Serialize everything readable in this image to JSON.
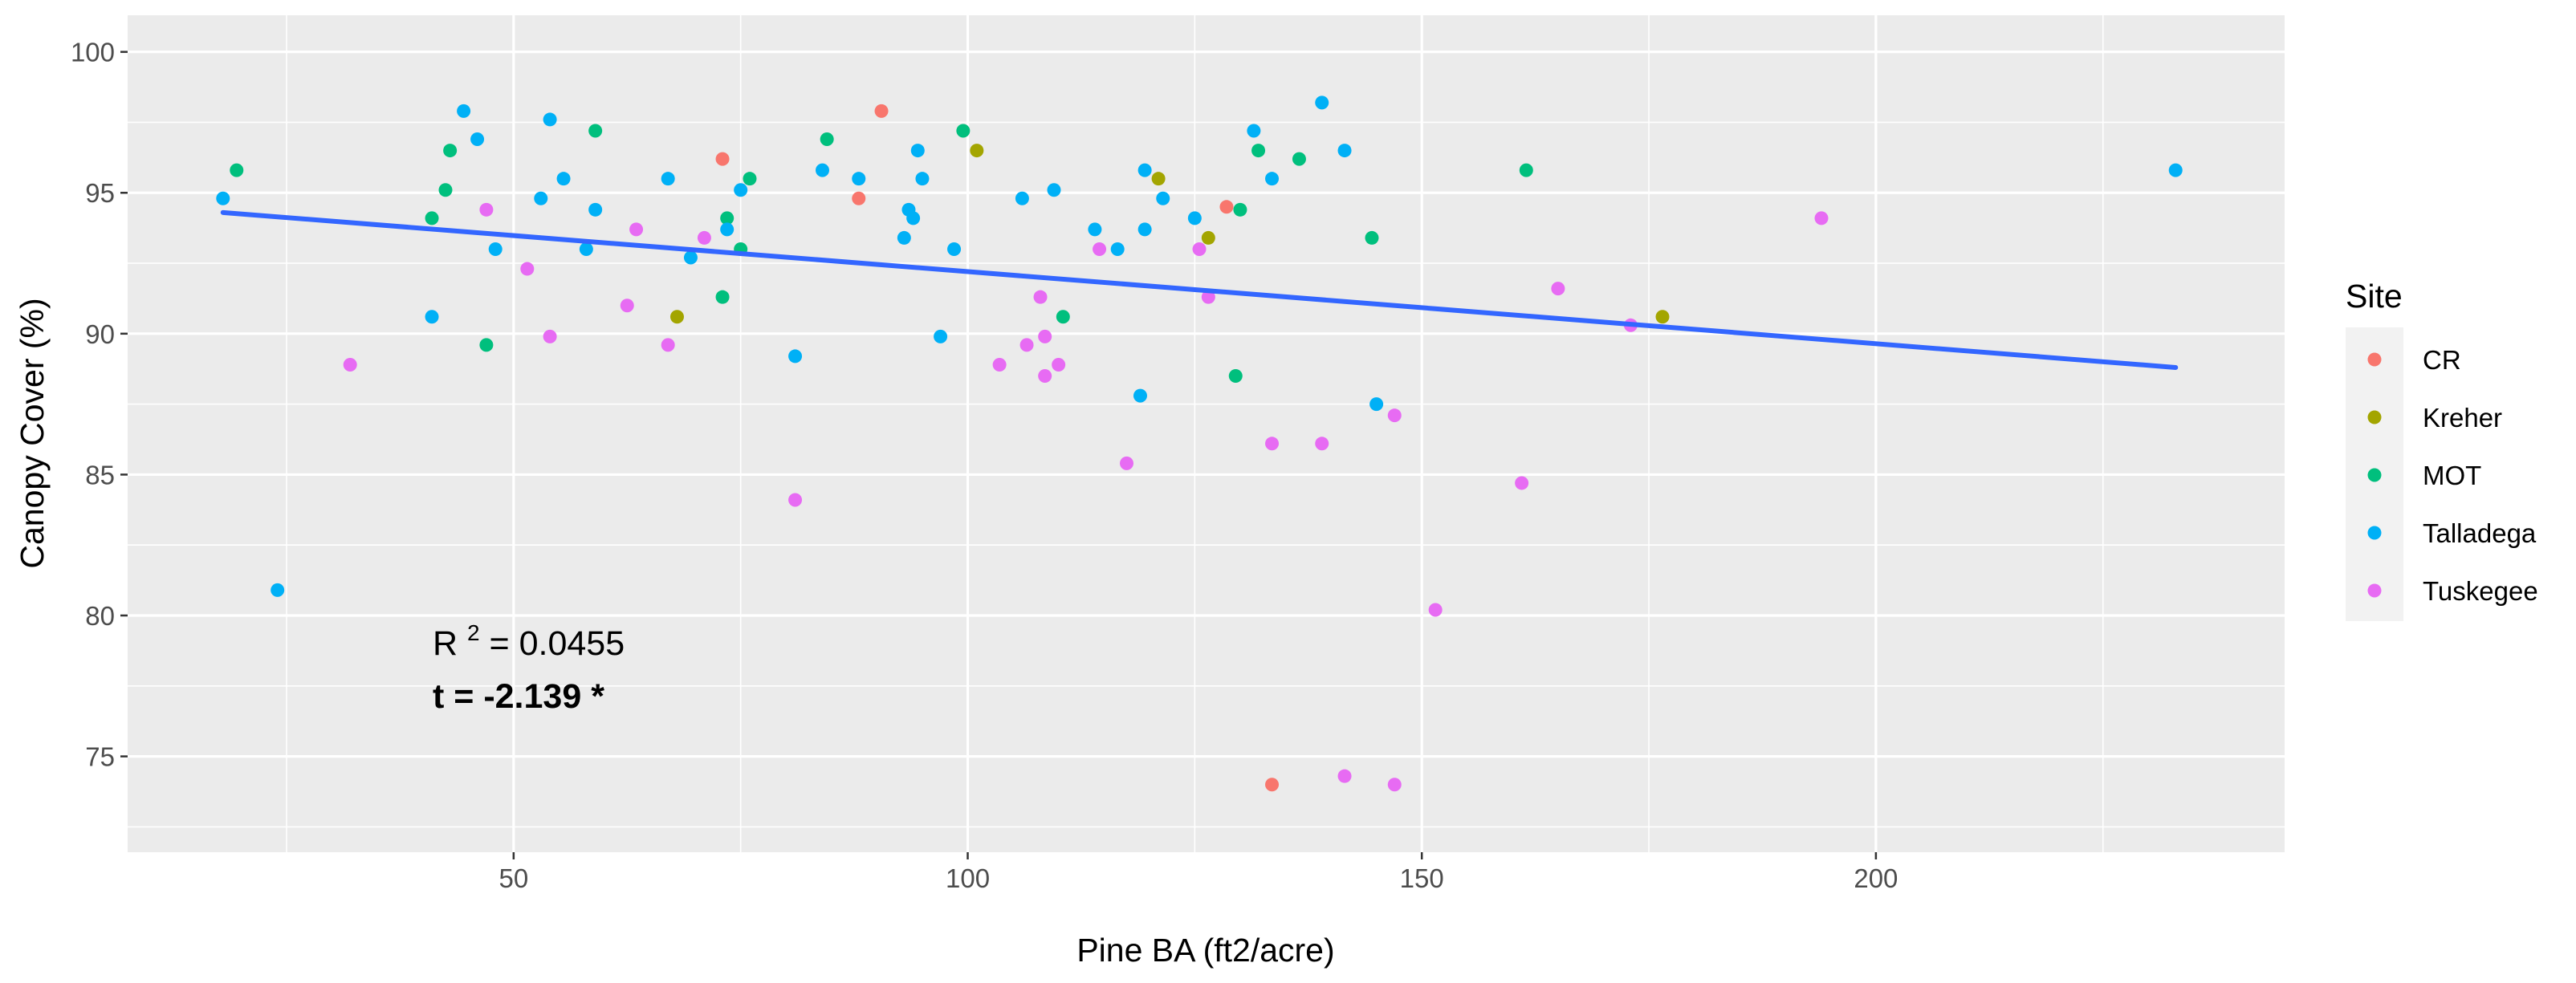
{
  "chart_data": {
    "type": "scatter",
    "title": "",
    "xlabel": "Pine BA (ft2/acre)",
    "ylabel": "Canopy Cover (%)",
    "xlim": [
      7.5,
      245
    ],
    "ylim": [
      71.6,
      101.3
    ],
    "x_ticks": [
      50,
      100,
      150,
      200
    ],
    "y_ticks": [
      75,
      80,
      85,
      90,
      95,
      100
    ],
    "grid": true,
    "legend": {
      "title": "Site",
      "position": "right"
    },
    "annotations": {
      "r2_prefix": "R",
      "r2_sup": "2",
      "r2_value": " = 0.0455",
      "t_stat": "t = -2.139 *"
    },
    "trendline": {
      "x": [
        18,
        233
      ],
      "y": [
        94.3,
        88.8
      ],
      "color": "#3366ff"
    },
    "series": [
      {
        "name": "CR",
        "color": "#f8766d",
        "points": [
          [
            73,
            96.2
          ],
          [
            88,
            94.8
          ],
          [
            90.5,
            97.9
          ],
          [
            128.5,
            94.5
          ],
          [
            133.5,
            74.0
          ]
        ]
      },
      {
        "name": "Kreher",
        "color": "#a3a500",
        "points": [
          [
            68,
            90.6
          ],
          [
            101,
            96.5
          ],
          [
            121,
            95.5
          ],
          [
            126.5,
            93.4
          ],
          [
            176.5,
            90.6
          ]
        ]
      },
      {
        "name": "MOT",
        "color": "#00bf7d",
        "points": [
          [
            19.5,
            95.8
          ],
          [
            41,
            94.1
          ],
          [
            42.5,
            95.1
          ],
          [
            43,
            96.5
          ],
          [
            47,
            89.6
          ],
          [
            59,
            97.2
          ],
          [
            73,
            91.3
          ],
          [
            73.5,
            94.1
          ],
          [
            75,
            93.0
          ],
          [
            76,
            95.5
          ],
          [
            84.5,
            96.9
          ],
          [
            99.5,
            97.2
          ],
          [
            110.5,
            90.6
          ],
          [
            129.5,
            88.5
          ],
          [
            130,
            94.4
          ],
          [
            132,
            96.5
          ],
          [
            136.5,
            96.2
          ],
          [
            144.5,
            93.4
          ],
          [
            161.5,
            95.8
          ]
        ]
      },
      {
        "name": "Talladega",
        "color": "#00b0f6",
        "points": [
          [
            18,
            94.8
          ],
          [
            24,
            80.9
          ],
          [
            41,
            90.6
          ],
          [
            44.5,
            97.9
          ],
          [
            46,
            96.9
          ],
          [
            48,
            93.0
          ],
          [
            53,
            94.8
          ],
          [
            54,
            97.6
          ],
          [
            55.5,
            95.5
          ],
          [
            58,
            93.0
          ],
          [
            59,
            94.4
          ],
          [
            67,
            95.5
          ],
          [
            69.5,
            92.7
          ],
          [
            73.5,
            93.7
          ],
          [
            75,
            95.1
          ],
          [
            81,
            89.2
          ],
          [
            84,
            95.8
          ],
          [
            88,
            95.5
          ],
          [
            93,
            93.4
          ],
          [
            93.5,
            94.4
          ],
          [
            94,
            94.1
          ],
          [
            94.5,
            96.5
          ],
          [
            95,
            95.5
          ],
          [
            97,
            89.9
          ],
          [
            98.5,
            93.0
          ],
          [
            106,
            94.8
          ],
          [
            109.5,
            95.1
          ],
          [
            114,
            93.7
          ],
          [
            116.5,
            93.0
          ],
          [
            119,
            87.8
          ],
          [
            119.5,
            93.7
          ],
          [
            119.5,
            95.8
          ],
          [
            121.5,
            94.8
          ],
          [
            125,
            94.1
          ],
          [
            131.5,
            97.2
          ],
          [
            133.5,
            95.5
          ],
          [
            139,
            98.2
          ],
          [
            141.5,
            96.5
          ],
          [
            145,
            87.5
          ],
          [
            233,
            95.8
          ]
        ]
      },
      {
        "name": "Tuskegee",
        "color": "#e76bf3",
        "points": [
          [
            32,
            88.9
          ],
          [
            47,
            94.4
          ],
          [
            51.5,
            92.3
          ],
          [
            54,
            89.9
          ],
          [
            62.5,
            91.0
          ],
          [
            63.5,
            93.7
          ],
          [
            67,
            89.6
          ],
          [
            71,
            93.4
          ],
          [
            81,
            84.1
          ],
          [
            103.5,
            88.9
          ],
          [
            106.5,
            89.6
          ],
          [
            108,
            91.3
          ],
          [
            108.5,
            88.5
          ],
          [
            108.5,
            89.9
          ],
          [
            110,
            88.9
          ],
          [
            114.5,
            93.0
          ],
          [
            117.5,
            85.4
          ],
          [
            125.5,
            93.0
          ],
          [
            126.5,
            91.3
          ],
          [
            133.5,
            86.1
          ],
          [
            139,
            86.1
          ],
          [
            141.5,
            74.3
          ],
          [
            147,
            87.1
          ],
          [
            147,
            74.0
          ],
          [
            151.5,
            80.2
          ],
          [
            161,
            84.7
          ],
          [
            165,
            91.6
          ],
          [
            173,
            90.3
          ],
          [
            194,
            94.1
          ]
        ]
      }
    ]
  }
}
